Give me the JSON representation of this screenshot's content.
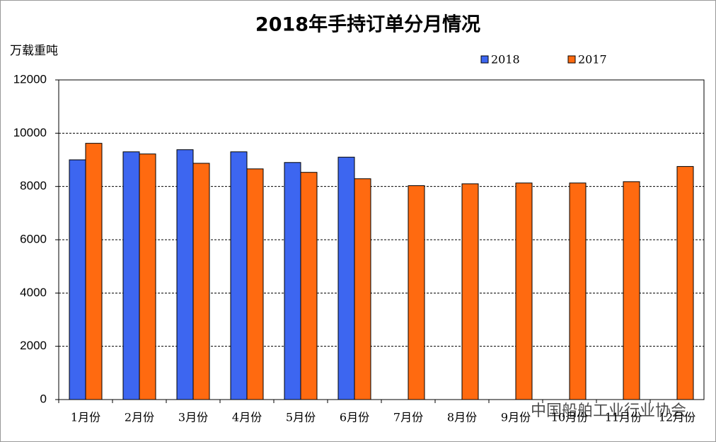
{
  "chart_data": {
    "type": "bar",
    "title": "2018年手持订单分月情况",
    "y_label": "万载重吨",
    "categories": [
      "1月份",
      "2月份",
      "3月份",
      "4月份",
      "5月份",
      "6月份",
      "7月份",
      "8月份",
      "9月份",
      "10月份",
      "11月份",
      "12月份"
    ],
    "series": [
      {
        "name": "2018",
        "color": "#3d66f0",
        "values": [
          9000,
          9300,
          9380,
          9300,
          8900,
          9100,
          null,
          null,
          null,
          null,
          null,
          null
        ]
      },
      {
        "name": "2017",
        "color": "#ff6a10",
        "values": [
          9620,
          9220,
          8870,
          8660,
          8530,
          8290,
          8030,
          8100,
          8130,
          8130,
          8180,
          8750
        ]
      }
    ],
    "ylim": [
      0,
      12000
    ],
    "yticks": [
      0,
      2000,
      4000,
      6000,
      8000,
      10000,
      12000
    ],
    "grid": true,
    "watermark": "中国船舶工业行业协会"
  }
}
